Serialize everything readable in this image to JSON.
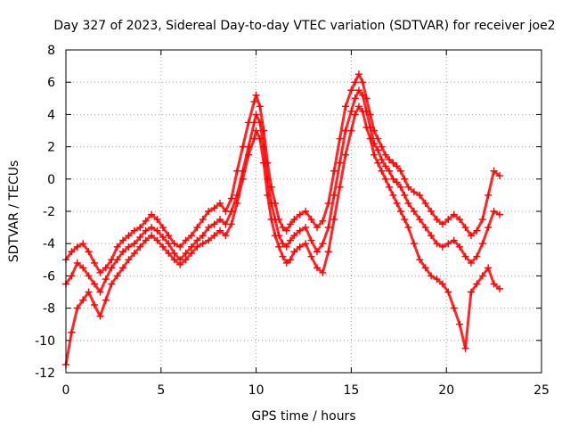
{
  "chart_data": {
    "type": "scatter",
    "title": "Day 327 of 2023, Sidereal Day-to-day VTEC variation (SDTVAR) for receiver joe2",
    "xlabel": "GPS time / hours",
    "ylabel": "SDTVAR / TECUs",
    "xlim": [
      0,
      25
    ],
    "ylim": [
      -12,
      8
    ],
    "xticks": [
      0,
      5,
      10,
      15,
      20,
      25
    ],
    "yticks": [
      -12,
      -10,
      -8,
      -6,
      -4,
      -2,
      0,
      2,
      4,
      6,
      8
    ],
    "grid": true,
    "marker": "+",
    "series": [
      {
        "name": "SDTVAR",
        "color": "#ff0000",
        "traces": [
          {
            "x": [
              0.0,
              0.3,
              0.6,
              0.9,
              1.2,
              1.5,
              1.8,
              2.1,
              2.4,
              2.7,
              3.0,
              3.3,
              3.6,
              3.9,
              4.2,
              4.5,
              4.8,
              5.1,
              5.4,
              5.7,
              6.0,
              6.3,
              6.6,
              6.9,
              7.2,
              7.5,
              7.8,
              8.1,
              8.4,
              8.7,
              9.0,
              9.3,
              9.6,
              9.9,
              10.0,
              10.2,
              10.4,
              10.6,
              10.8,
              11.0,
              11.2,
              11.4,
              11.6,
              11.8,
              12.0,
              12.3,
              12.6,
              12.9,
              13.2,
              13.5,
              13.8,
              14.1,
              14.4,
              14.7,
              15.0,
              15.2,
              15.4,
              15.6,
              15.8,
              16.0,
              16.2,
              16.4,
              16.6,
              16.8,
              17.0,
              17.2,
              17.4,
              17.6,
              17.8,
              18.0,
              18.3,
              18.6,
              18.9,
              19.2,
              19.5,
              19.8,
              20.1,
              20.4,
              20.7,
              21.0,
              21.3,
              21.6,
              21.9,
              22.2,
              22.5,
              22.8
            ],
            "y": [
              -5.0,
              -4.5,
              -4.2,
              -4.0,
              -4.5,
              -5.2,
              -5.8,
              -5.5,
              -5.0,
              -4.2,
              -3.8,
              -3.5,
              -3.2,
              -3.0,
              -2.6,
              -2.2,
              -2.5,
              -3.0,
              -3.5,
              -4.0,
              -4.2,
              -3.8,
              -3.5,
              -3.0,
              -2.5,
              -2.0,
              -1.8,
              -1.5,
              -2.0,
              -1.2,
              0.5,
              2.0,
              3.5,
              4.8,
              5.2,
              4.5,
              3.0,
              1.0,
              -0.5,
              -1.5,
              -2.5,
              -3.0,
              -3.2,
              -2.8,
              -2.5,
              -2.2,
              -2.0,
              -2.5,
              -3.0,
              -2.6,
              -1.5,
              0.5,
              2.5,
              4.5,
              5.5,
              6.0,
              6.5,
              6.0,
              5.0,
              4.0,
              3.0,
              2.5,
              2.0,
              1.5,
              1.2,
              1.0,
              0.8,
              0.5,
              0.0,
              -0.5,
              -0.8,
              -1.0,
              -1.5,
              -2.0,
              -2.5,
              -2.8,
              -2.5,
              -2.2,
              -2.5,
              -3.0,
              -3.5,
              -3.2,
              -2.5,
              -1.0,
              0.5,
              0.2
            ]
          },
          {
            "x": [
              0.0,
              0.3,
              0.6,
              0.9,
              1.2,
              1.5,
              1.8,
              2.1,
              2.4,
              2.7,
              3.0,
              3.3,
              3.6,
              3.9,
              4.2,
              4.5,
              4.8,
              5.1,
              5.4,
              5.7,
              6.0,
              6.3,
              6.6,
              6.9,
              7.2,
              7.5,
              7.8,
              8.1,
              8.4,
              8.7,
              9.0,
              9.3,
              9.6,
              9.9,
              10.0,
              10.2,
              10.4,
              10.6,
              10.8,
              11.0,
              11.2,
              11.4,
              11.6,
              11.8,
              12.0,
              12.3,
              12.6,
              12.9,
              13.2,
              13.5,
              13.8,
              14.1,
              14.4,
              14.7,
              15.0,
              15.2,
              15.4,
              15.6,
              15.8,
              16.0,
              16.2,
              16.4,
              16.6,
              16.8,
              17.0,
              17.2,
              17.4,
              17.6,
              17.8,
              18.0,
              18.3,
              18.6,
              18.9,
              19.2,
              19.5,
              19.8,
              20.1,
              20.4,
              20.7,
              21.0,
              21.3,
              21.6,
              21.9,
              22.2,
              22.5,
              22.8
            ],
            "y": [
              -6.5,
              -6.0,
              -5.2,
              -5.5,
              -6.0,
              -6.5,
              -7.0,
              -6.2,
              -5.5,
              -5.0,
              -4.5,
              -4.2,
              -4.0,
              -3.6,
              -3.2,
              -3.0,
              -3.2,
              -3.6,
              -4.0,
              -4.6,
              -5.0,
              -4.6,
              -4.2,
              -3.8,
              -3.5,
              -3.0,
              -2.8,
              -2.5,
              -2.8,
              -2.0,
              -1.0,
              0.5,
              2.0,
              3.5,
              4.0,
              3.5,
              2.0,
              0.0,
              -1.5,
              -2.5,
              -3.5,
              -4.0,
              -4.2,
              -3.8,
              -3.5,
              -3.2,
              -3.0,
              -3.8,
              -4.5,
              -4.0,
              -3.0,
              -1.0,
              1.0,
              3.0,
              4.2,
              5.0,
              5.5,
              5.2,
              4.2,
              3.2,
              2.2,
              1.8,
              1.2,
              0.8,
              0.5,
              0.0,
              -0.2,
              -0.5,
              -1.0,
              -1.5,
              -2.0,
              -2.5,
              -3.0,
              -3.5,
              -4.0,
              -4.2,
              -4.0,
              -3.8,
              -4.2,
              -4.8,
              -5.2,
              -4.8,
              -4.0,
              -3.0,
              -2.0,
              -2.2
            ]
          },
          {
            "x": [
              0.0,
              0.3,
              0.6,
              0.9,
              1.2,
              1.5,
              1.8,
              2.1,
              2.4,
              2.7,
              3.0,
              3.3,
              3.6,
              3.9,
              4.2,
              4.5,
              4.8,
              5.1,
              5.4,
              5.7,
              6.0,
              6.3,
              6.6,
              6.9,
              7.2,
              7.5,
              7.8,
              8.1,
              8.4,
              8.7,
              9.0,
              9.3,
              9.6,
              9.9,
              10.0,
              10.2,
              10.4,
              10.6,
              10.8,
              11.0,
              11.2,
              11.4,
              11.6,
              11.8,
              12.0,
              12.3,
              12.6,
              12.9,
              13.2,
              13.5,
              13.8,
              14.1,
              14.4,
              14.7,
              15.0,
              15.2,
              15.4,
              15.6,
              15.8,
              16.0,
              16.2,
              16.4,
              16.6,
              16.8,
              17.0,
              17.2,
              17.4,
              17.6,
              17.8,
              18.0,
              18.3,
              18.6,
              18.9,
              19.2,
              19.5,
              19.8,
              20.1,
              20.4,
              20.7,
              21.0,
              21.3,
              21.6,
              21.9,
              22.2,
              22.5,
              22.8
            ],
            "y": [
              -11.5,
              -9.5,
              -8.0,
              -7.5,
              -7.0,
              -7.8,
              -8.5,
              -7.5,
              -6.5,
              -6.0,
              -5.5,
              -5.0,
              -4.6,
              -4.2,
              -3.8,
              -3.5,
              -3.8,
              -4.2,
              -4.6,
              -5.0,
              -5.3,
              -5.0,
              -4.6,
              -4.2,
              -4.0,
              -3.8,
              -3.5,
              -3.2,
              -3.5,
              -2.8,
              -1.5,
              0.0,
              1.5,
              2.5,
              3.0,
              2.5,
              1.0,
              -1.0,
              -2.5,
              -3.5,
              -4.2,
              -4.8,
              -5.2,
              -5.0,
              -4.5,
              -4.2,
              -4.0,
              -4.8,
              -5.5,
              -5.8,
              -4.5,
              -2.5,
              -0.5,
              1.5,
              3.0,
              4.0,
              4.5,
              4.2,
              3.2,
              2.5,
              1.5,
              1.0,
              0.5,
              0.0,
              -0.5,
              -1.0,
              -1.5,
              -2.0,
              -2.5,
              -3.0,
              -4.0,
              -5.0,
              -5.5,
              -6.0,
              -6.2,
              -6.5,
              -7.0,
              -8.0,
              -9.0,
              -10.5,
              -7.0,
              -6.5,
              -6.0,
              -5.5,
              -6.5,
              -6.8
            ]
          }
        ]
      }
    ]
  }
}
